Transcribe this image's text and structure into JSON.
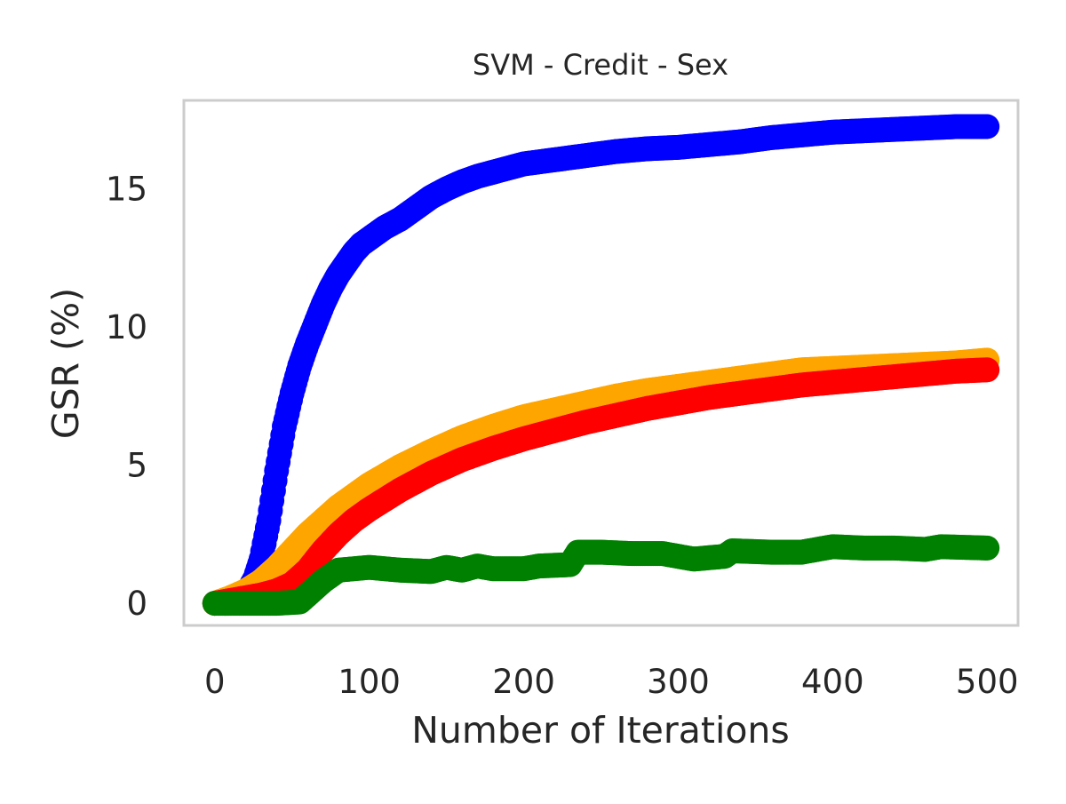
{
  "chart_data": {
    "type": "scatter",
    "title": "SVM - Credit - Sex",
    "xlabel": "Number of Iterations",
    "ylabel": "GSR (%)",
    "xlim": [
      -20,
      520
    ],
    "ylim": [
      -0.8,
      18.2
    ],
    "xticks": [
      0,
      100,
      200,
      300,
      400,
      500
    ],
    "yticks": [
      0,
      5,
      10,
      15
    ],
    "grid": false,
    "legend": "none",
    "series": [
      {
        "color": "#0000ff",
        "points": [
          [
            0,
            0.0
          ],
          [
            10,
            0.1
          ],
          [
            20,
            0.3
          ],
          [
            26,
            0.9
          ],
          [
            30,
            1.6
          ],
          [
            35,
            3.0
          ],
          [
            40,
            4.8
          ],
          [
            45,
            6.4
          ],
          [
            50,
            7.6
          ],
          [
            55,
            8.6
          ],
          [
            60,
            9.4
          ],
          [
            65,
            10.1
          ],
          [
            70,
            10.8
          ],
          [
            75,
            11.4
          ],
          [
            80,
            11.9
          ],
          [
            85,
            12.3
          ],
          [
            90,
            12.7
          ],
          [
            95,
            13.0
          ],
          [
            100,
            13.2
          ],
          [
            110,
            13.6
          ],
          [
            120,
            13.9
          ],
          [
            130,
            14.3
          ],
          [
            140,
            14.7
          ],
          [
            150,
            15.0
          ],
          [
            160,
            15.25
          ],
          [
            170,
            15.45
          ],
          [
            180,
            15.6
          ],
          [
            190,
            15.75
          ],
          [
            200,
            15.9
          ],
          [
            220,
            16.05
          ],
          [
            240,
            16.2
          ],
          [
            260,
            16.35
          ],
          [
            280,
            16.45
          ],
          [
            300,
            16.5
          ],
          [
            320,
            16.6
          ],
          [
            340,
            16.7
          ],
          [
            360,
            16.85
          ],
          [
            380,
            16.95
          ],
          [
            400,
            17.05
          ],
          [
            420,
            17.1
          ],
          [
            440,
            17.15
          ],
          [
            460,
            17.2
          ],
          [
            480,
            17.25
          ],
          [
            500,
            17.25
          ]
        ]
      },
      {
        "color": "#ffa500",
        "points": [
          [
            0,
            0.0
          ],
          [
            10,
            0.2
          ],
          [
            20,
            0.45
          ],
          [
            30,
            0.8
          ],
          [
            40,
            1.3
          ],
          [
            50,
            1.9
          ],
          [
            60,
            2.5
          ],
          [
            70,
            3.0
          ],
          [
            80,
            3.5
          ],
          [
            90,
            3.9
          ],
          [
            100,
            4.3
          ],
          [
            120,
            4.95
          ],
          [
            140,
            5.5
          ],
          [
            160,
            6.0
          ],
          [
            180,
            6.4
          ],
          [
            200,
            6.75
          ],
          [
            220,
            7.0
          ],
          [
            240,
            7.25
          ],
          [
            260,
            7.5
          ],
          [
            280,
            7.7
          ],
          [
            300,
            7.85
          ],
          [
            320,
            8.0
          ],
          [
            340,
            8.15
          ],
          [
            360,
            8.3
          ],
          [
            380,
            8.45
          ],
          [
            400,
            8.5
          ],
          [
            420,
            8.55
          ],
          [
            440,
            8.6
          ],
          [
            460,
            8.65
          ],
          [
            480,
            8.7
          ],
          [
            500,
            8.8
          ]
        ]
      },
      {
        "color": "#ff0000",
        "points": [
          [
            0,
            0.0
          ],
          [
            10,
            0.1
          ],
          [
            20,
            0.2
          ],
          [
            30,
            0.3
          ],
          [
            40,
            0.45
          ],
          [
            50,
            0.7
          ],
          [
            60,
            1.2
          ],
          [
            70,
            1.9
          ],
          [
            80,
            2.5
          ],
          [
            90,
            3.0
          ],
          [
            100,
            3.4
          ],
          [
            120,
            4.1
          ],
          [
            140,
            4.7
          ],
          [
            160,
            5.2
          ],
          [
            180,
            5.6
          ],
          [
            200,
            5.95
          ],
          [
            220,
            6.25
          ],
          [
            240,
            6.55
          ],
          [
            260,
            6.8
          ],
          [
            280,
            7.05
          ],
          [
            300,
            7.25
          ],
          [
            320,
            7.45
          ],
          [
            340,
            7.6
          ],
          [
            360,
            7.75
          ],
          [
            380,
            7.9
          ],
          [
            400,
            8.0
          ],
          [
            420,
            8.1
          ],
          [
            440,
            8.2
          ],
          [
            460,
            8.3
          ],
          [
            480,
            8.4
          ],
          [
            500,
            8.45
          ]
        ]
      },
      {
        "color": "#008000",
        "points": [
          [
            0,
            0.0
          ],
          [
            20,
            0.0
          ],
          [
            40,
            0.0
          ],
          [
            55,
            0.05
          ],
          [
            60,
            0.3
          ],
          [
            70,
            0.8
          ],
          [
            80,
            1.2
          ],
          [
            100,
            1.3
          ],
          [
            120,
            1.2
          ],
          [
            140,
            1.15
          ],
          [
            150,
            1.3
          ],
          [
            160,
            1.2
          ],
          [
            170,
            1.35
          ],
          [
            180,
            1.25
          ],
          [
            200,
            1.25
          ],
          [
            210,
            1.35
          ],
          [
            230,
            1.4
          ],
          [
            235,
            1.85
          ],
          [
            250,
            1.85
          ],
          [
            270,
            1.8
          ],
          [
            290,
            1.8
          ],
          [
            310,
            1.6
          ],
          [
            330,
            1.7
          ],
          [
            335,
            1.9
          ],
          [
            360,
            1.85
          ],
          [
            380,
            1.85
          ],
          [
            400,
            2.05
          ],
          [
            420,
            2.0
          ],
          [
            440,
            2.0
          ],
          [
            460,
            1.95
          ],
          [
            470,
            2.05
          ],
          [
            500,
            2.0
          ]
        ]
      }
    ]
  }
}
